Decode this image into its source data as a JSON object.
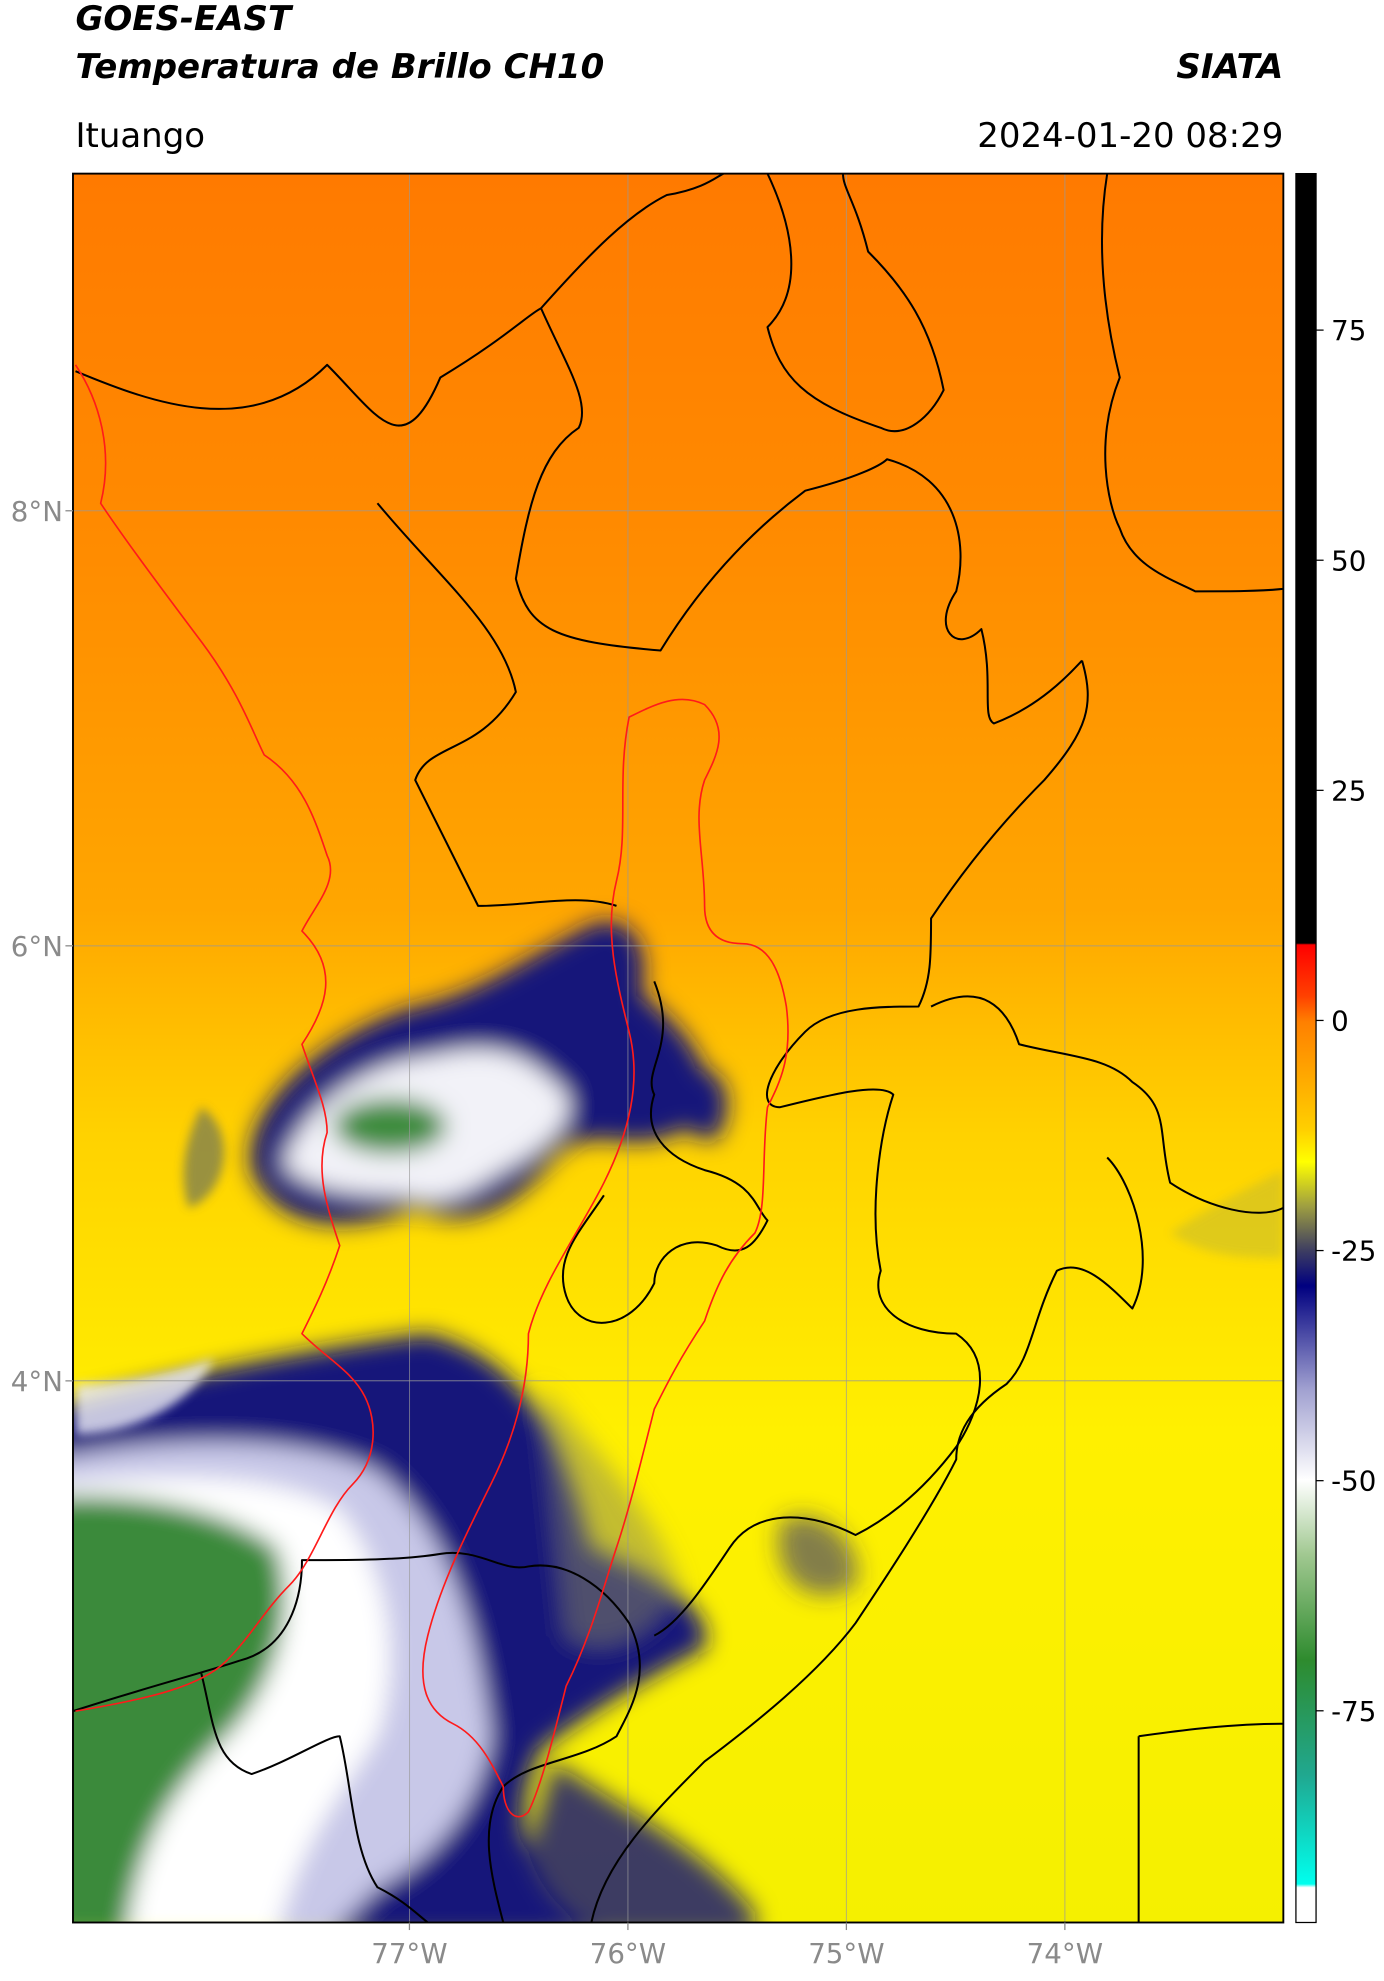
{
  "chart_data": {
    "type": "map",
    "title": "GOES-EAST",
    "subtitle": "Temperatura de Brillo CH10",
    "source": "SIATA",
    "location": "Ituango",
    "timestamp": "2024-01-20 08:29",
    "xlim": [
      -78.54,
      -73.0
    ],
    "ylim": [
      1.51,
      9.55
    ],
    "xticks": [
      {
        "value": -77,
        "label": "77°W"
      },
      {
        "value": -76,
        "label": "76°W"
      },
      {
        "value": -75,
        "label": "75°W"
      },
      {
        "value": -74,
        "label": "74°W"
      }
    ],
    "yticks": [
      {
        "value": 4,
        "label": "4°N"
      },
      {
        "value": 6,
        "label": "6°N"
      },
      {
        "value": 8,
        "label": "8°N"
      }
    ],
    "grid": true,
    "colorbar": {
      "lim": [
        -98,
        92
      ],
      "ticks": [
        -75,
        -50,
        -25,
        0,
        25,
        50,
        75
      ]
    }
  }
}
